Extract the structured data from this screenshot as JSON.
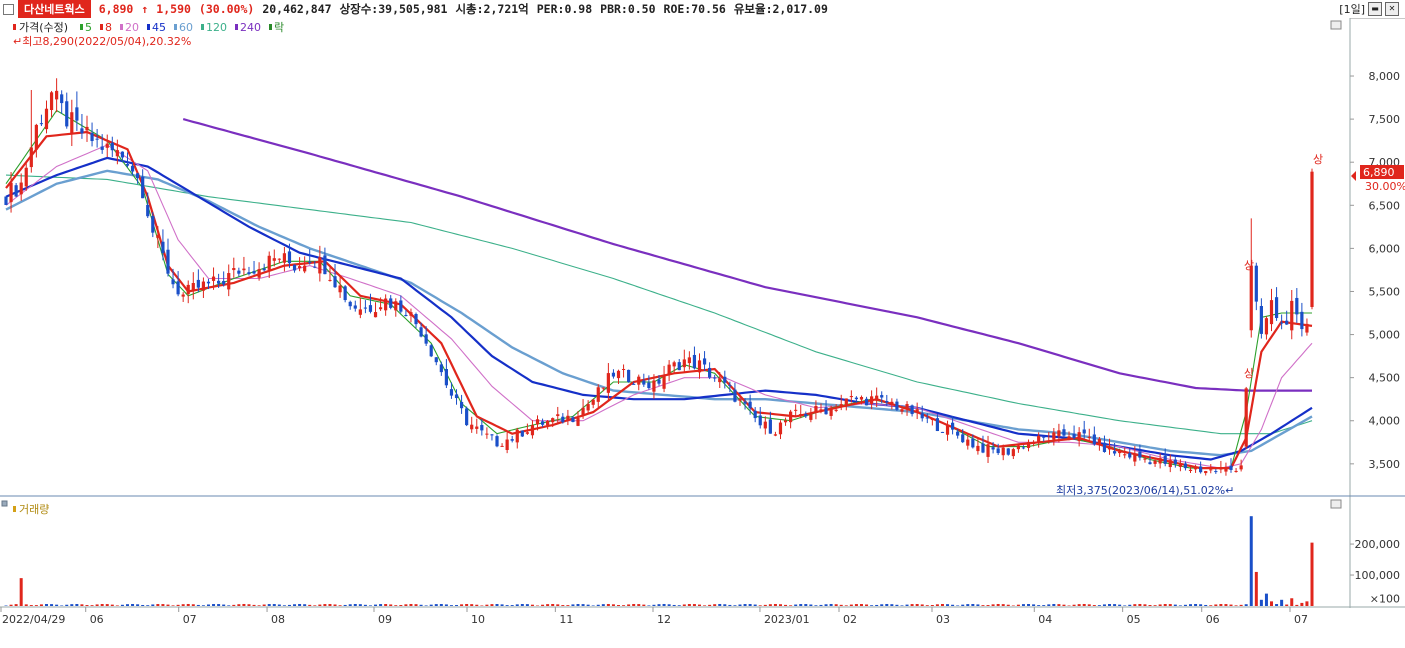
{
  "header": {
    "stock_name": "다산네트웍스",
    "price": "6,890",
    "change_arrow": "↑",
    "change": "1,590",
    "change_pct": "(30.00%)",
    "volume": "20,462,847",
    "listed": "상장수:39,505,981",
    "mktcap": "시총:2,721억",
    "per": "PER:0.98",
    "pbr": "PBR:0.50",
    "roe": "ROE:70.56",
    "reserve": "유보율:2,017.09",
    "period": "[1일]"
  },
  "legend": {
    "price_label": "가격(수정)",
    "ma": [
      {
        "label": "5",
        "color": "#2ca02c"
      },
      {
        "label": "8",
        "color": "#e0261c"
      },
      {
        "label": "20",
        "color": "#d070c8"
      },
      {
        "label": "45",
        "color": "#1530c8"
      },
      {
        "label": "60",
        "color": "#6a9fd0"
      },
      {
        "label": "120",
        "color": "#3cb08a"
      },
      {
        "label": "240",
        "color": "#7a2fbf"
      },
      {
        "label": "락",
        "color": "#2a8a2a"
      }
    ],
    "volume_label": "거래량"
  },
  "annotations": {
    "high": "최고8,290(2022/05/04),20.32%",
    "low": "최저3,375(2023/06/14),51.02%",
    "limit_up": "상"
  },
  "price_tag": {
    "price": "6,890",
    "pct": "30.00%"
  },
  "chart_data": {
    "type": "candlestick",
    "price_axis": {
      "ticks": [
        8000,
        7500,
        7000,
        6500,
        6000,
        5500,
        5000,
        4500,
        4000,
        3500
      ],
      "tick_labels": [
        "8,000",
        "7,500",
        "7,000",
        "6,500",
        "6,000",
        "5,500",
        "5,000",
        "4,500",
        "4,000",
        "3,500"
      ],
      "ylim": [
        3150,
        8650
      ]
    },
    "volume_axis": {
      "ticks": [
        200000,
        100000
      ],
      "tick_labels": [
        "200,000",
        "100,000"
      ],
      "unit": "×100"
    },
    "x_labels": [
      "2022/04/29",
      "06",
      "07",
      "08",
      "09",
      "10",
      "11",
      "12",
      "2023/01",
      "02",
      "03",
      "04",
      "05",
      "06",
      "07"
    ],
    "price_path_anchors": [
      [
        0,
        6620
      ],
      [
        3,
        6750
      ],
      [
        6,
        7400
      ],
      [
        9,
        7800
      ],
      [
        12,
        7500
      ],
      [
        16,
        7300
      ],
      [
        20,
        7150
      ],
      [
        24,
        7050
      ],
      [
        27,
        6700
      ],
      [
        29,
        6200
      ],
      [
        31,
        5900
      ],
      [
        33,
        5600
      ],
      [
        35,
        5450
      ],
      [
        38,
        5550
      ],
      [
        42,
        5600
      ],
      [
        46,
        5750
      ],
      [
        50,
        5800
      ],
      [
        54,
        5900
      ],
      [
        57,
        5800
      ],
      [
        60,
        5900
      ],
      [
        63,
        5800
      ],
      [
        66,
        5550
      ],
      [
        68,
        5350
      ],
      [
        71,
        5300
      ],
      [
        75,
        5400
      ],
      [
        79,
        5300
      ],
      [
        82,
        5050
      ],
      [
        85,
        4700
      ],
      [
        88,
        4300
      ],
      [
        91,
        4000
      ],
      [
        94,
        3850
      ],
      [
        97,
        3750
      ],
      [
        100,
        3800
      ],
      [
        104,
        3950
      ],
      [
        108,
        4000
      ],
      [
        112,
        4050
      ],
      [
        116,
        4250
      ],
      [
        120,
        4550
      ],
      [
        124,
        4500
      ],
      [
        128,
        4400
      ],
      [
        131,
        4600
      ],
      [
        134,
        4700
      ],
      [
        137,
        4650
      ],
      [
        140,
        4500
      ],
      [
        143,
        4350
      ],
      [
        146,
        4150
      ],
      [
        149,
        3950
      ],
      [
        152,
        3900
      ],
      [
        155,
        4050
      ],
      [
        159,
        4100
      ],
      [
        163,
        4150
      ],
      [
        167,
        4250
      ],
      [
        171,
        4250
      ],
      [
        175,
        4200
      ],
      [
        179,
        4100
      ],
      [
        182,
        4000
      ],
      [
        186,
        3900
      ],
      [
        189,
        3800
      ],
      [
        192,
        3700
      ],
      [
        195,
        3650
      ],
      [
        198,
        3650
      ],
      [
        202,
        3750
      ],
      [
        206,
        3800
      ],
      [
        210,
        3850
      ],
      [
        214,
        3800
      ],
      [
        218,
        3650
      ],
      [
        222,
        3600
      ],
      [
        226,
        3550
      ],
      [
        230,
        3500
      ],
      [
        234,
        3450
      ],
      [
        238,
        3420
      ],
      [
        242,
        3430
      ],
      [
        244,
        3500
      ],
      [
        245,
        4400
      ],
      [
        246,
        5750
      ],
      [
        247,
        5300
      ],
      [
        248,
        5000
      ],
      [
        250,
        5350
      ],
      [
        252,
        5100
      ],
      [
        254,
        5300
      ],
      [
        256,
        5000
      ],
      [
        257,
        5150
      ],
      [
        258,
        6890
      ]
    ],
    "moving_average_anchors": {
      "ma5": [
        [
          0,
          6750
        ],
        [
          10,
          7600
        ],
        [
          20,
          7250
        ],
        [
          27,
          6700
        ],
        [
          32,
          5700
        ],
        [
          36,
          5450
        ],
        [
          45,
          5650
        ],
        [
          55,
          5850
        ],
        [
          62,
          5850
        ],
        [
          68,
          5450
        ],
        [
          76,
          5350
        ],
        [
          84,
          4900
        ],
        [
          90,
          4200
        ],
        [
          97,
          3850
        ],
        [
          104,
          3950
        ],
        [
          112,
          4050
        ],
        [
          120,
          4450
        ],
        [
          128,
          4450
        ],
        [
          134,
          4650
        ],
        [
          140,
          4550
        ],
        [
          148,
          4050
        ],
        [
          155,
          4000
        ],
        [
          163,
          4150
        ],
        [
          171,
          4250
        ],
        [
          178,
          4150
        ],
        [
          186,
          3950
        ],
        [
          194,
          3700
        ],
        [
          202,
          3700
        ],
        [
          210,
          3800
        ],
        [
          218,
          3700
        ],
        [
          226,
          3550
        ],
        [
          234,
          3450
        ],
        [
          242,
          3450
        ],
        [
          245,
          4100
        ],
        [
          248,
          5200
        ],
        [
          252,
          5250
        ],
        [
          258,
          5250
        ]
      ],
      "ma8": [
        [
          0,
          6700
        ],
        [
          8,
          7300
        ],
        [
          16,
          7350
        ],
        [
          24,
          7150
        ],
        [
          28,
          6600
        ],
        [
          32,
          5800
        ],
        [
          36,
          5500
        ],
        [
          45,
          5600
        ],
        [
          55,
          5800
        ],
        [
          63,
          5850
        ],
        [
          70,
          5450
        ],
        [
          78,
          5350
        ],
        [
          86,
          4900
        ],
        [
          93,
          4050
        ],
        [
          100,
          3850
        ],
        [
          108,
          3950
        ],
        [
          116,
          4100
        ],
        [
          124,
          4450
        ],
        [
          132,
          4550
        ],
        [
          140,
          4600
        ],
        [
          148,
          4100
        ],
        [
          156,
          4050
        ],
        [
          164,
          4150
        ],
        [
          172,
          4250
        ],
        [
          180,
          4100
        ],
        [
          188,
          3900
        ],
        [
          196,
          3700
        ],
        [
          204,
          3750
        ],
        [
          212,
          3800
        ],
        [
          220,
          3650
        ],
        [
          228,
          3550
        ],
        [
          236,
          3450
        ],
        [
          242,
          3450
        ],
        [
          245,
          3800
        ],
        [
          248,
          4800
        ],
        [
          252,
          5150
        ],
        [
          258,
          5100
        ]
      ],
      "ma20": [
        [
          0,
          6500
        ],
        [
          10,
          6950
        ],
        [
          20,
          7200
        ],
        [
          28,
          6900
        ],
        [
          34,
          6100
        ],
        [
          40,
          5650
        ],
        [
          50,
          5650
        ],
        [
          60,
          5800
        ],
        [
          68,
          5650
        ],
        [
          78,
          5450
        ],
        [
          88,
          4950
        ],
        [
          96,
          4400
        ],
        [
          104,
          4000
        ],
        [
          114,
          4000
        ],
        [
          124,
          4300
        ],
        [
          134,
          4500
        ],
        [
          142,
          4500
        ],
        [
          150,
          4300
        ],
        [
          160,
          4150
        ],
        [
          170,
          4200
        ],
        [
          180,
          4150
        ],
        [
          190,
          3950
        ],
        [
          200,
          3750
        ],
        [
          210,
          3750
        ],
        [
          220,
          3700
        ],
        [
          230,
          3550
        ],
        [
          240,
          3450
        ],
        [
          244,
          3500
        ],
        [
          248,
          3900
        ],
        [
          252,
          4500
        ],
        [
          258,
          4900
        ]
      ],
      "ma45": [
        [
          0,
          6600
        ],
        [
          10,
          6850
        ],
        [
          20,
          7050
        ],
        [
          28,
          6950
        ],
        [
          38,
          6600
        ],
        [
          48,
          6250
        ],
        [
          58,
          5950
        ],
        [
          68,
          5800
        ],
        [
          78,
          5650
        ],
        [
          88,
          5200
        ],
        [
          96,
          4750
        ],
        [
          104,
          4450
        ],
        [
          114,
          4300
        ],
        [
          124,
          4250
        ],
        [
          134,
          4250
        ],
        [
          142,
          4300
        ],
        [
          150,
          4350
        ],
        [
          160,
          4300
        ],
        [
          170,
          4200
        ],
        [
          180,
          4150
        ],
        [
          190,
          4000
        ],
        [
          200,
          3850
        ],
        [
          210,
          3800
        ],
        [
          220,
          3700
        ],
        [
          230,
          3600
        ],
        [
          238,
          3550
        ],
        [
          244,
          3650
        ],
        [
          250,
          3850
        ],
        [
          258,
          4150
        ]
      ],
      "ma60": [
        [
          0,
          6450
        ],
        [
          10,
          6750
        ],
        [
          20,
          6900
        ],
        [
          30,
          6800
        ],
        [
          40,
          6550
        ],
        [
          50,
          6250
        ],
        [
          60,
          6000
        ],
        [
          70,
          5800
        ],
        [
          80,
          5600
        ],
        [
          90,
          5250
        ],
        [
          100,
          4850
        ],
        [
          110,
          4550
        ],
        [
          120,
          4350
        ],
        [
          130,
          4300
        ],
        [
          140,
          4250
        ],
        [
          150,
          4250
        ],
        [
          160,
          4200
        ],
        [
          170,
          4150
        ],
        [
          180,
          4100
        ],
        [
          190,
          4000
        ],
        [
          200,
          3900
        ],
        [
          210,
          3850
        ],
        [
          220,
          3750
        ],
        [
          230,
          3650
        ],
        [
          240,
          3600
        ],
        [
          246,
          3650
        ],
        [
          252,
          3850
        ],
        [
          258,
          4050
        ]
      ],
      "ma120": [
        [
          0,
          6850
        ],
        [
          20,
          6800
        ],
        [
          40,
          6600
        ],
        [
          60,
          6450
        ],
        [
          80,
          6300
        ],
        [
          100,
          6000
        ],
        [
          120,
          5650
        ],
        [
          140,
          5250
        ],
        [
          160,
          4800
        ],
        [
          180,
          4450
        ],
        [
          200,
          4200
        ],
        [
          220,
          4000
        ],
        [
          240,
          3850
        ],
        [
          250,
          3850
        ],
        [
          258,
          4000
        ]
      ],
      "ma240": [
        [
          35,
          7500
        ],
        [
          60,
          7100
        ],
        [
          90,
          6600
        ],
        [
          120,
          6050
        ],
        [
          150,
          5550
        ],
        [
          180,
          5200
        ],
        [
          200,
          4900
        ],
        [
          220,
          4550
        ],
        [
          235,
          4380
        ],
        [
          245,
          4350
        ],
        [
          258,
          4350
        ]
      ]
    },
    "volume_spikes": [
      [
        3,
        90000
      ],
      [
        246,
        290000
      ],
      [
        247,
        110000
      ],
      [
        248,
        20000
      ],
      [
        249,
        40000
      ],
      [
        250,
        15000
      ],
      [
        252,
        20000
      ],
      [
        254,
        25000
      ],
      [
        256,
        10000
      ],
      [
        257,
        15000
      ],
      [
        258,
        204628
      ]
    ]
  }
}
